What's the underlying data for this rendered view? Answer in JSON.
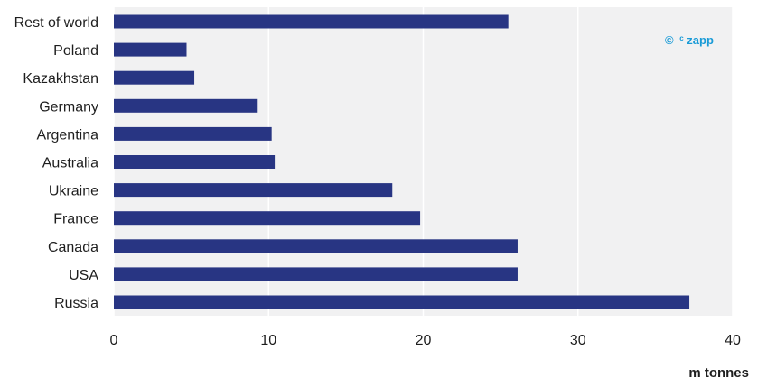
{
  "colors": {
    "bar": "#283583",
    "plot_background": "#f1f1f2",
    "gridline": "#ffffff",
    "logo": "#1a9bd7"
  },
  "logo": {
    "symbol": "©",
    "superscript": "c",
    "text": "zapp"
  },
  "chart_data": {
    "type": "bar",
    "orientation": "horizontal",
    "categories": [
      "Rest of world",
      "Poland",
      "Kazakhstan",
      "Germany",
      "Argentina",
      "Australia",
      "Ukraine",
      "France",
      "Canada",
      "USA",
      "Russia"
    ],
    "values": [
      25.5,
      4.7,
      5.2,
      9.3,
      10.2,
      10.4,
      18.0,
      19.8,
      26.1,
      26.1,
      37.2
    ],
    "xlabel": "m tonnes",
    "ylabel": "",
    "xlim": [
      0,
      40
    ],
    "xticks": [
      0,
      10,
      20,
      30,
      40
    ],
    "grid": true
  }
}
